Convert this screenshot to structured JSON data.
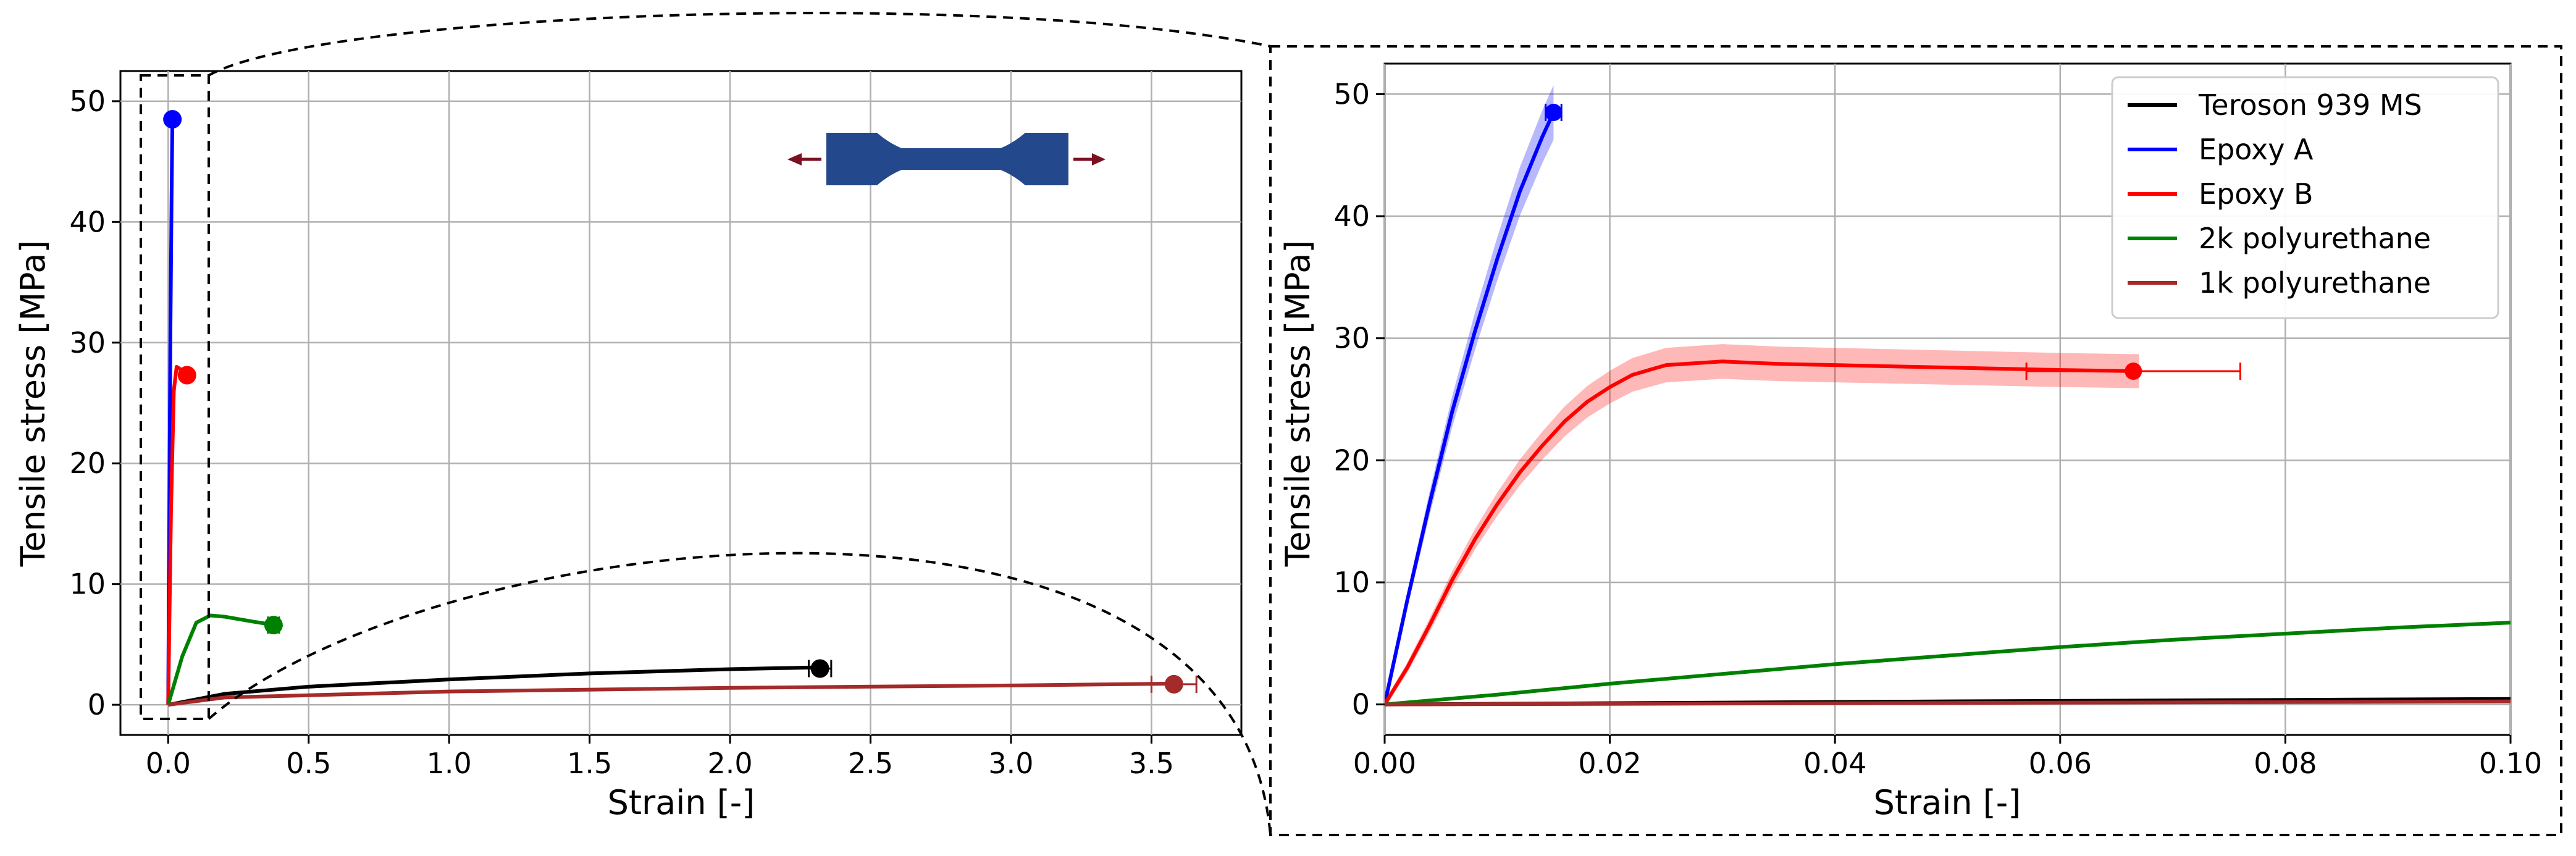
{
  "chart_data": [
    {
      "type": "line",
      "xlabel": "Strain [-]",
      "ylabel": "Tensile stress [MPa]",
      "xlim": [
        -0.17,
        3.82
      ],
      "ylim": [
        -2.5,
        52.5
      ],
      "xticks": [
        "0.0",
        "0.5",
        "1.0",
        "1.5",
        "2.0",
        "2.5",
        "3.0",
        "3.5"
      ],
      "yticks": [
        "0",
        "10",
        "20",
        "30",
        "40",
        "50"
      ],
      "grid": true,
      "series": [
        {
          "name": "Teroson 939 MS",
          "color": "#000000",
          "x": [
            0,
            0.2,
            0.5,
            1.0,
            1.5,
            2.0,
            2.32
          ],
          "y": [
            0,
            0.9,
            1.5,
            2.1,
            2.6,
            2.95,
            3.1
          ],
          "end": {
            "x": 2.32,
            "y": 3.0,
            "xerr": 0.04
          }
        },
        {
          "name": "Epoxy A",
          "color": "#0000ff",
          "x": [
            0,
            0.004,
            0.008,
            0.012,
            0.015
          ],
          "y": [
            0,
            16,
            31,
            42,
            48.5
          ],
          "end": {
            "x": 0.015,
            "y": 48.5,
            "xerr": 0.001
          }
        },
        {
          "name": "Epoxy B",
          "color": "#ff0000",
          "x": [
            0,
            0.01,
            0.02,
            0.03,
            0.05,
            0.067
          ],
          "y": [
            0,
            16,
            26,
            28,
            27.7,
            27.3
          ],
          "end": {
            "x": 0.067,
            "y": 27.3,
            "xerr": 0.009
          }
        },
        {
          "name": "2k polyurethane",
          "color": "#008000",
          "x": [
            0,
            0.05,
            0.1,
            0.15,
            0.2,
            0.3,
            0.38
          ],
          "y": [
            0,
            4,
            6.8,
            7.4,
            7.3,
            6.9,
            6.6
          ],
          "end": {
            "x": 0.375,
            "y": 6.6,
            "xerr": 0.02
          }
        },
        {
          "name": "1k polyurethane",
          "color": "#a52a2a",
          "x": [
            0,
            0.2,
            1.0,
            2.0,
            3.0,
            3.58
          ],
          "y": [
            0,
            0.6,
            1.1,
            1.4,
            1.6,
            1.75
          ],
          "end": {
            "x": 3.58,
            "y": 1.7,
            "xerr": 0.08
          }
        }
      ]
    },
    {
      "type": "line",
      "xlabel": "Strain [-]",
      "ylabel": "Tensile stress [MPa]",
      "xlim": [
        0,
        0.1
      ],
      "ylim": [
        -2.5,
        52.5
      ],
      "xticks": [
        "0.00",
        "0.02",
        "0.04",
        "0.06",
        "0.08",
        "0.10"
      ],
      "yticks": [
        "0",
        "10",
        "20",
        "30",
        "40",
        "50"
      ],
      "grid": true,
      "legend": "top-right",
      "series": [
        {
          "name": "Teroson 939 MS",
          "color": "#000000",
          "x": [
            0,
            0.05,
            0.1
          ],
          "y": [
            0,
            0.25,
            0.45
          ]
        },
        {
          "name": "Epoxy A",
          "color": "#0000ff",
          "x": [
            0,
            0.002,
            0.004,
            0.006,
            0.008,
            0.01,
            0.012,
            0.014,
            0.015
          ],
          "y": [
            0,
            8.5,
            16.5,
            24,
            30.5,
            36.5,
            42,
            46.5,
            48.5
          ],
          "end": {
            "x": 0.015,
            "y": 48.5,
            "xerr": 0.0007
          }
        },
        {
          "name": "Epoxy B",
          "color": "#ff0000",
          "x": [
            0,
            0.002,
            0.004,
            0.006,
            0.008,
            0.01,
            0.012,
            0.014,
            0.016,
            0.018,
            0.02,
            0.022,
            0.025,
            0.03,
            0.035,
            0.04,
            0.05,
            0.06,
            0.067
          ],
          "y": [
            0,
            3,
            6.5,
            10.2,
            13.5,
            16.4,
            19,
            21.2,
            23.2,
            24.8,
            26,
            27,
            27.8,
            28.1,
            27.9,
            27.8,
            27.6,
            27.4,
            27.3
          ],
          "end": {
            "x": 0.0665,
            "y": 27.3,
            "xerr": 0.0095
          }
        },
        {
          "name": "2k polyurethane",
          "color": "#008000",
          "x": [
            0,
            0.01,
            0.02,
            0.03,
            0.04,
            0.05,
            0.06,
            0.07,
            0.08,
            0.09,
            0.1
          ],
          "y": [
            0,
            0.8,
            1.7,
            2.5,
            3.3,
            4.0,
            4.7,
            5.3,
            5.8,
            6.3,
            6.7
          ]
        },
        {
          "name": "1k polyurethane",
          "color": "#a52a2a",
          "x": [
            0,
            0.05,
            0.1
          ],
          "y": [
            0,
            0.12,
            0.25
          ]
        }
      ]
    }
  ]
}
